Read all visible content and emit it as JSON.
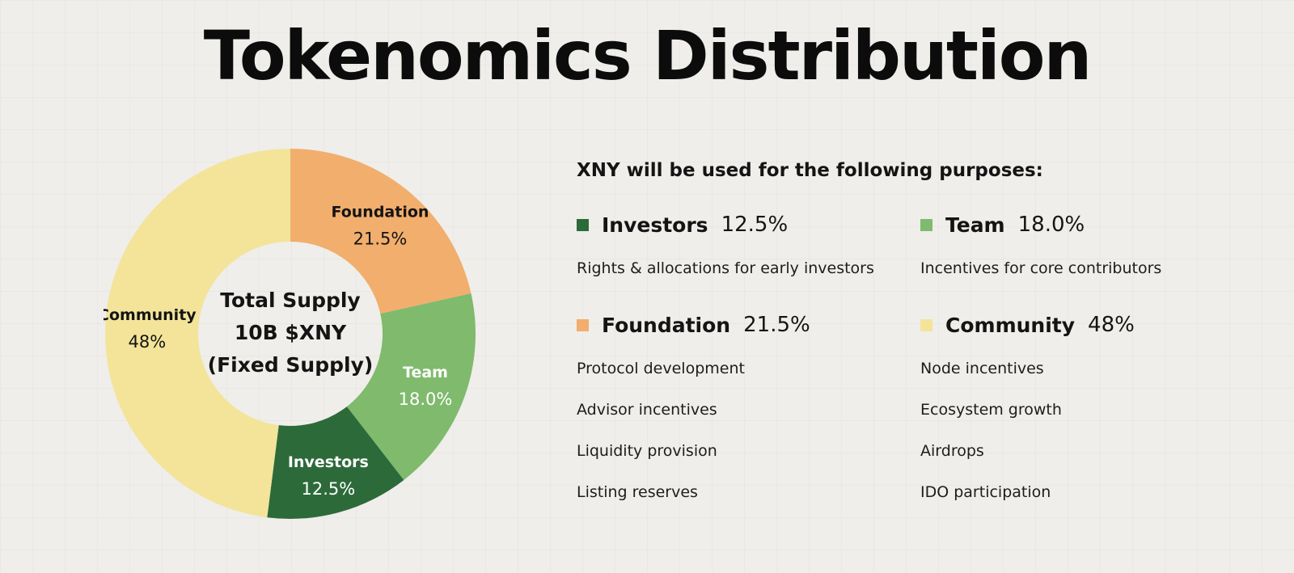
{
  "title": "Tokenomics Distribution",
  "chart_data": {
    "type": "pie",
    "donut": true,
    "center_text": [
      "Total Supply",
      "10B $XNY",
      "(Fixed Supply)"
    ],
    "slices": [
      {
        "label": "Foundation",
        "value": 21.5,
        "display": "21.5%",
        "color": "#f2ae6d",
        "text_color": "#141414"
      },
      {
        "label": "Team",
        "value": 18.0,
        "display": "18.0%",
        "color": "#7fba6d",
        "text_color": "#ffffff"
      },
      {
        "label": "Investors",
        "value": 12.5,
        "display": "12.5%",
        "color": "#2d6a3a",
        "text_color": "#ffffff"
      },
      {
        "label": "Community",
        "value": 48,
        "display": "48%",
        "color": "#f3e49a",
        "text_color": "#141414"
      }
    ]
  },
  "panel": {
    "subtitle": "XNY will be used for the following purposes:",
    "groups": [
      {
        "name": "Investors",
        "pct": "12.5%",
        "color": "#2d6a3a",
        "items": [
          "Rights & allocations for early investors"
        ]
      },
      {
        "name": "Team",
        "pct": "18.0%",
        "color": "#7fba6d",
        "items": [
          "Incentives for core contributors"
        ]
      },
      {
        "name": "Foundation",
        "pct": "21.5%",
        "color": "#f2ae6d",
        "items": [
          "Protocol development",
          "Advisor incentives",
          "Liquidity provision",
          "Listing reserves"
        ]
      },
      {
        "name": "Community",
        "pct": "48%",
        "color": "#f3e49a",
        "items": [
          "Node incentives",
          "Ecosystem growth",
          "Airdrops",
          "IDO participation"
        ]
      }
    ]
  }
}
